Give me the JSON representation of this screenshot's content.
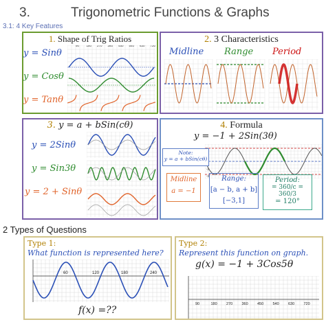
{
  "header": {
    "number": "3.",
    "title": "Trigonometric Functions & Graphs",
    "subtitle": "3.1: 4 Key Features"
  },
  "panel1": {
    "num": "1.",
    "title": "Shape of Trig Ratios",
    "eq_sin": "y = Sinθ",
    "eq_cos": "y = Cosθ",
    "eq_tan": "y = Tanθ",
    "ticks": [
      "90",
      "180",
      "270",
      "360",
      "450",
      "540",
      "630",
      "720"
    ]
  },
  "panel2": {
    "num": "2.",
    "title": "3 Characteristics",
    "midline": "Midline",
    "range": "Range",
    "period": "Period"
  },
  "panel3": {
    "num": "3.",
    "title": "y = a + bSin(cθ)",
    "eq1": "y = 2Sinθ",
    "eq2": "y = Sin3θ",
    "eq3": "y = 2 + Sinθ"
  },
  "panel4": {
    "num": "4.",
    "title": "Formula",
    "formula": "y = −1 + 2Sin(3θ)",
    "note_label": "Note:",
    "note_formula": "y = a + bSin(cθ)",
    "midline_label": "Midline",
    "midline_value": "a = −1",
    "range_label": "Range:",
    "range_formula": "[a − b, a + b]",
    "range_value": "[−3,1]",
    "period_label": "Period:",
    "period_line1": "= 360/c = 360/3",
    "period_value": "= 120°",
    "ticks": [
      "1",
      "0",
      "-1",
      "-2",
      "-3"
    ]
  },
  "section2": {
    "title": "2 Types of Questions",
    "type1_label": "Type 1:",
    "type1_question": "What function is represented here?",
    "type1_fn": "f(x) =??",
    "type1_ticks": [
      "60",
      "120",
      "180",
      "240"
    ],
    "type2_label": "Type 2:",
    "type2_question": "Represent this function on graph.",
    "type2_fn": "g(x) = −1 + 3Cos5θ",
    "type2_ticks": [
      "90",
      "180",
      "270",
      "360",
      "450",
      "540",
      "630",
      "720"
    ]
  },
  "colors": {
    "green_border": "#6a9b2e",
    "purple_border": "#7a5fa8",
    "blue_border": "#6d8fc7",
    "sin": "#2a4fb6",
    "cos": "#2e8b2e",
    "tan": "#e0632a",
    "period_red": "#cc1111"
  }
}
